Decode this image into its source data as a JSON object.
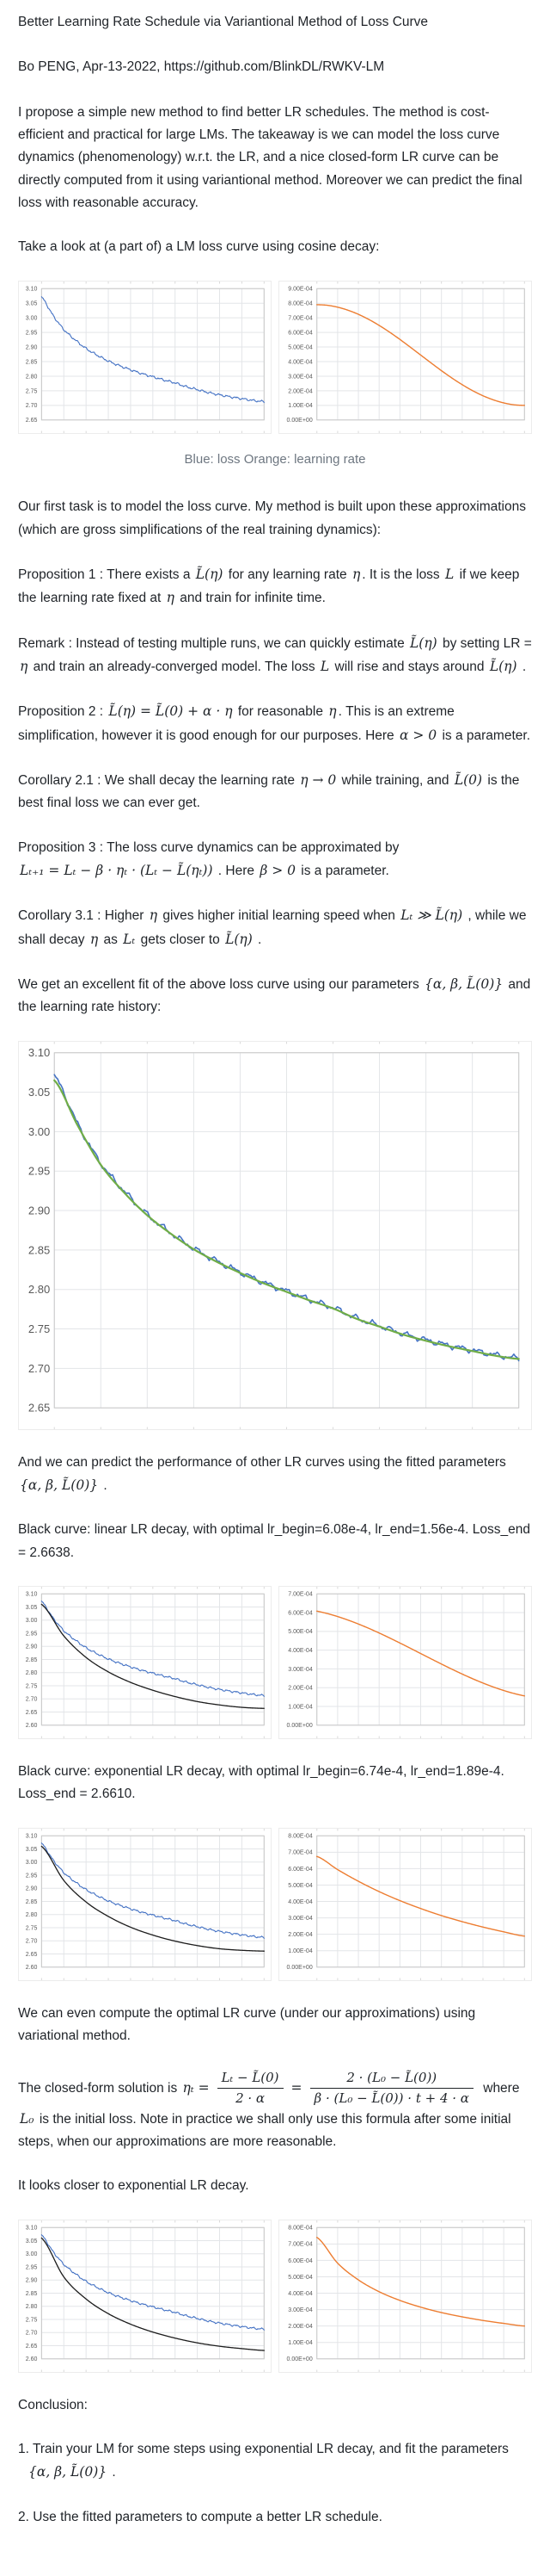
{
  "page": {
    "title": "Better Learning Rate Schedule via Variantional Method of Loss Curve",
    "byline": "Bo PENG, Apr-13-2022, https://github.com/BlinkDL/RWKV-LM"
  },
  "caption": "Blue: loss Orange: learning rate",
  "colors": {
    "loss_blue": "#4472c4",
    "lr_orange": "#ed7d31",
    "fit_green": "#70ad47",
    "predicted_black": "#1c1c1c",
    "caption_gray": "#6e7781"
  },
  "paras": {
    "intro": [
      {
        "t": "I propose a simple new method to find better LR schedules. The method is cost-efficient and practical for large LMs. The takeaway is we can model the loss curve dynamics (phenomenology) w.r.t. the LR, and a nice closed-form LR curve can be directly computed from it using variantional method. Moreover we can predict the final loss with reasonable accuracy."
      }
    ],
    "take_look": [
      {
        "t": "Take a look at (a part of) a LM loss curve using cosine decay:"
      }
    ],
    "first_task": [
      {
        "t": "Our first task is to model the loss curve. My method is built upon these approximations (which are gross simplifications of the real training dynamics):"
      }
    ],
    "prop1": [
      {
        "t": "Proposition 1 : There exists a "
      },
      {
        "m": "L̃(η)"
      },
      {
        "t": " for any learning rate "
      },
      {
        "m": "η"
      },
      {
        "t": ". It is the loss "
      },
      {
        "m": "L"
      },
      {
        "t": " if we keep the learning rate fixed at "
      },
      {
        "m": "η"
      },
      {
        "t": " and train for infinite time."
      }
    ],
    "remark": [
      {
        "t": "Remark : Instead of testing multiple runs, we can quickly estimate "
      },
      {
        "m": "L̃(η)"
      },
      {
        "t": " by setting LR = "
      },
      {
        "m": "η"
      },
      {
        "t": " and train an already-converged model. The loss "
      },
      {
        "m": "L"
      },
      {
        "t": " will rise and stays around "
      },
      {
        "m": "L̃(η)"
      },
      {
        "t": " ."
      }
    ],
    "prop2": [
      {
        "t": "Proposition 2 : "
      },
      {
        "m": "L̃(η) = L̃(0) + α · η"
      },
      {
        "t": " for reasonable "
      },
      {
        "m": "η"
      },
      {
        "t": ". This is an extreme simplification, however it is good enough for our purposes. Here "
      },
      {
        "m": "α > 0"
      },
      {
        "t": " is a parameter."
      }
    ],
    "cor21": [
      {
        "t": "Corollary 2.1 : We shall decay the learning rate "
      },
      {
        "m": "η → 0"
      },
      {
        "t": " while training, and "
      },
      {
        "m": "L̃(0)"
      },
      {
        "t": " is the best final loss we can ever get."
      }
    ],
    "prop3": [
      {
        "t": "Proposition 3 : The loss curve dynamics can be approximated by"
      },
      {
        "br": true
      },
      {
        "m": "Lₜ₊₁ = Lₜ − β · ηₜ · (Lₜ − L̃(ηₜ))"
      },
      {
        "t": " . Here "
      },
      {
        "m": "β > 0"
      },
      {
        "t": " is a parameter."
      }
    ],
    "cor31": [
      {
        "t": "Corollary 3.1 : Higher "
      },
      {
        "m": "η"
      },
      {
        "t": " gives higher initial learning speed when "
      },
      {
        "m": "Lₜ ≫ L̃(η)"
      },
      {
        "t": " , while we shall decay "
      },
      {
        "m": "η"
      },
      {
        "t": " as "
      },
      {
        "m": "Lₜ"
      },
      {
        "t": " gets closer to "
      },
      {
        "m": "L̃(η)"
      },
      {
        "t": " ."
      }
    ],
    "fit_intro": [
      {
        "t": "We get an excellent fit of the above loss curve using our parameters "
      },
      {
        "m": "{α, β, L̃(0)}"
      },
      {
        "t": " and the learning rate history:"
      }
    ],
    "predict": [
      {
        "t": "And we can predict the performance of other LR curves using the fitted parameters"
      },
      {
        "br": true
      },
      {
        "m": "{α, β, L̃(0)}"
      },
      {
        "t": " ."
      }
    ],
    "linear_line": [
      {
        "t": "Black curve: linear LR decay, with optimal lr_begin=6.08e-4, lr_end=1.56e-4. Loss_end = 2.6638."
      }
    ],
    "exp_line": [
      {
        "t": "Black curve: exponential LR decay, with optimal lr_begin=6.74e-4, lr_end=1.89e-4. Loss_end = 2.6610."
      }
    ],
    "variational": [
      {
        "t": "We can even compute the optimal LR curve (under our approximations) using variational method."
      }
    ],
    "closed_form": [
      {
        "t": "The closed-form solution is "
      },
      {
        "m": "ηₜ ="
      },
      {
        "f": {
          "num": "Lₜ − L̃(0)",
          "den": "2 · α"
        }
      },
      {
        "m": "="
      },
      {
        "f": {
          "num": "2 · (L₀ − L̃(0))",
          "den": "β · (L₀ − L̃(0)) · t + 4 · α"
        }
      },
      {
        "t": " where "
      },
      {
        "m": "L₀"
      },
      {
        "t": " is the initial loss. Note in practice we shall only use this formula after some initial steps, when our approximations are more reasonable."
      }
    ],
    "looks_closer": [
      {
        "t": "It looks closer to exponential LR decay."
      }
    ],
    "conclusion": [
      {
        "t": "Conclusion:"
      }
    ],
    "conc1": [
      {
        "t": "1. Train your LM for some steps using exponential LR decay, and fit the parameters"
      },
      {
        "br": true
      },
      {
        "sp": 10
      },
      {
        "m": "{α, β, L̃(0)}"
      },
      {
        "t": " ."
      }
    ],
    "conc2": [
      {
        "t": "2. Use the fitted parameters to compute a better LR schedule."
      }
    ]
  },
  "chart_data": [
    {
      "id": "cosine_loss",
      "type": "line",
      "title": "LM loss, cosine LR decay",
      "x_columns": 10,
      "y_ticks": [
        "3.10",
        "3.05",
        "3.00",
        "2.95",
        "2.90",
        "2.85",
        "2.80",
        "2.75",
        "2.70",
        "2.65"
      ],
      "y_min": 2.65,
      "y_max": 3.1,
      "grid": true,
      "legend": "none",
      "series": [
        {
          "name": "loss (blue)",
          "color": "#4472c4",
          "width": 1.1,
          "noise": 0.005,
          "values": [
            3.07,
            3.01,
            2.96,
            2.925,
            2.895,
            2.872,
            2.852,
            2.836,
            2.822,
            2.809,
            2.798,
            2.787,
            2.777,
            2.764,
            2.754,
            2.744,
            2.736,
            2.729,
            2.723,
            2.717,
            2.713
          ]
        }
      ]
    },
    {
      "id": "cosine_lr",
      "type": "line",
      "title": "learning rate, cosine decay",
      "x_columns": 10,
      "y_ticks": [
        "9.00E-04",
        "8.00E-04",
        "7.00E-04",
        "6.00E-04",
        "5.00E-04",
        "4.00E-04",
        "3.00E-04",
        "2.00E-04",
        "1.00E-04",
        "0.00E+00"
      ],
      "y_min": 0,
      "y_max": 0.0009,
      "grid": true,
      "legend": "none",
      "series": [
        {
          "name": "learning rate (orange)",
          "color": "#ed7d31",
          "width": 1.4,
          "values": [
            0.00079,
            0.000786,
            0.000773,
            0.000752,
            0.000724,
            0.000689,
            0.000648,
            0.000602,
            0.000552,
            0.000499,
            0.000445,
            0.000391,
            0.000338,
            0.000288,
            0.000242,
            0.000201,
            0.000166,
            0.000138,
            0.000117,
            0.000104,
            0.0001
          ]
        }
      ]
    },
    {
      "id": "fit",
      "type": "line",
      "title": "loss curve fit with parameters {α, β, L̃(0)}",
      "x_columns": 10,
      "y_ticks": [
        "3.10",
        "3.05",
        "3.00",
        "2.95",
        "2.90",
        "2.85",
        "2.80",
        "2.75",
        "2.70",
        "2.65"
      ],
      "y_min": 2.65,
      "y_max": 3.1,
      "grid": true,
      "legend": "none",
      "series": [
        {
          "name": "actual loss (blue)",
          "color": "#4472c4",
          "width": 1.6,
          "noise": 0.005,
          "values": [
            3.07,
            3.01,
            2.96,
            2.925,
            2.895,
            2.872,
            2.852,
            2.836,
            2.822,
            2.809,
            2.798,
            2.787,
            2.777,
            2.764,
            2.754,
            2.744,
            2.736,
            2.729,
            2.723,
            2.717,
            2.713
          ]
        },
        {
          "name": "model fit (green)",
          "color": "#70ad47",
          "width": 2.2,
          "values": [
            3.065,
            3.008,
            2.958,
            2.923,
            2.894,
            2.871,
            2.851,
            2.835,
            2.821,
            2.808,
            2.797,
            2.786,
            2.776,
            2.763,
            2.753,
            2.743,
            2.735,
            2.728,
            2.722,
            2.716,
            2.712
          ]
        }
      ]
    },
    {
      "id": "linear_loss",
      "type": "line",
      "title": "predicted loss, linear LR decay",
      "x_columns": 10,
      "y_ticks": [
        "3.10",
        "3.05",
        "3.00",
        "2.95",
        "2.90",
        "2.85",
        "2.80",
        "2.75",
        "2.70",
        "2.65",
        "2.60"
      ],
      "y_min": 2.6,
      "y_max": 3.1,
      "grid": true,
      "legend": "none",
      "series": [
        {
          "name": "actual loss (blue)",
          "color": "#4472c4",
          "width": 1.1,
          "noise": 0.005,
          "values": [
            3.07,
            3.01,
            2.96,
            2.925,
            2.895,
            2.872,
            2.852,
            2.836,
            2.822,
            2.809,
            2.798,
            2.787,
            2.777,
            2.764,
            2.754,
            2.744,
            2.736,
            2.729,
            2.723,
            2.717,
            2.713
          ]
        },
        {
          "name": "predicted loss linear decay (black), loss_end 2.6638",
          "color": "#1c1c1c",
          "width": 1.3,
          "values": [
            3.06,
            2.94,
            2.858,
            2.803,
            2.763,
            2.733,
            2.709,
            2.69,
            2.677,
            2.668,
            2.664
          ]
        }
      ]
    },
    {
      "id": "linear_lr",
      "type": "line",
      "title": "linear LR decay, lr_begin 6.08e-4 to lr_end 1.56e-4",
      "x_columns": 10,
      "y_ticks": [
        "7.00E-04",
        "6.00E-04",
        "5.00E-04",
        "4.00E-04",
        "3.00E-04",
        "2.00E-04",
        "1.00E-04",
        "0.00E+00"
      ],
      "y_min": 0,
      "y_max": 0.0007,
      "grid": true,
      "legend": "none",
      "series": [
        {
          "name": "learning rate (orange)",
          "color": "#ed7d31",
          "width": 1.4,
          "values": [
            0.000608,
            0.000156
          ]
        }
      ]
    },
    {
      "id": "exp_loss",
      "type": "line",
      "title": "predicted loss, exponential LR decay",
      "x_columns": 10,
      "y_ticks": [
        "3.10",
        "3.05",
        "3.00",
        "2.95",
        "2.90",
        "2.85",
        "2.80",
        "2.75",
        "2.70",
        "2.65",
        "2.60"
      ],
      "y_min": 2.6,
      "y_max": 3.1,
      "grid": true,
      "legend": "none",
      "series": [
        {
          "name": "actual loss (blue)",
          "color": "#4472c4",
          "width": 1.1,
          "noise": 0.005,
          "values": [
            3.07,
            3.01,
            2.96,
            2.925,
            2.895,
            2.872,
            2.852,
            2.836,
            2.822,
            2.809,
            2.798,
            2.787,
            2.777,
            2.764,
            2.754,
            2.744,
            2.736,
            2.729,
            2.723,
            2.717,
            2.713
          ]
        },
        {
          "name": "predicted loss exponential decay (black), loss_end 2.6610",
          "color": "#1c1c1c",
          "width": 1.3,
          "values": [
            3.06,
            2.93,
            2.848,
            2.793,
            2.752,
            2.722,
            2.699,
            2.682,
            2.67,
            2.664,
            2.661
          ]
        }
      ]
    },
    {
      "id": "exp_lr",
      "type": "line",
      "title": "exponential LR decay, lr_begin 6.74e-4 to lr_end 1.89e-4",
      "x_columns": 10,
      "y_ticks": [
        "8.00E-04",
        "7.00E-04",
        "6.00E-04",
        "5.00E-04",
        "4.00E-04",
        "3.00E-04",
        "2.00E-04",
        "1.00E-04",
        "0.00E+00"
      ],
      "y_min": 0,
      "y_max": 0.0008,
      "grid": true,
      "legend": "none",
      "series": [
        {
          "name": "learning rate (orange)",
          "color": "#ed7d31",
          "width": 1.4,
          "values": [
            0.000674,
            0.000594,
            0.000523,
            0.00046,
            0.000405,
            0.000357,
            0.000314,
            0.000277,
            0.000244,
            0.000215,
            0.000189
          ]
        }
      ]
    },
    {
      "id": "optimal_loss",
      "type": "line",
      "title": "predicted loss, optimal (variational) LR curve",
      "x_columns": 10,
      "y_ticks": [
        "3.10",
        "3.05",
        "3.00",
        "2.95",
        "2.90",
        "2.85",
        "2.80",
        "2.75",
        "2.70",
        "2.65",
        "2.60"
      ],
      "y_min": 2.6,
      "y_max": 3.1,
      "grid": true,
      "legend": "none",
      "series": [
        {
          "name": "actual loss (blue)",
          "color": "#4472c4",
          "width": 1.1,
          "noise": 0.005,
          "values": [
            3.07,
            3.01,
            2.96,
            2.925,
            2.895,
            2.872,
            2.852,
            2.836,
            2.822,
            2.809,
            2.798,
            2.787,
            2.777,
            2.764,
            2.754,
            2.744,
            2.736,
            2.729,
            2.723,
            2.717,
            2.713
          ]
        },
        {
          "name": "predicted loss optimal LR (black)",
          "color": "#1c1c1c",
          "width": 1.3,
          "values": [
            3.06,
            2.912,
            2.828,
            2.772,
            2.732,
            2.702,
            2.679,
            2.661,
            2.648,
            2.639,
            2.632
          ]
        }
      ]
    },
    {
      "id": "optimal_lr",
      "type": "line",
      "title": "optimal closed-form LR curve",
      "x_columns": 10,
      "y_ticks": [
        "8.00E-04",
        "7.00E-04",
        "6.00E-04",
        "5.00E-04",
        "4.00E-04",
        "3.00E-04",
        "2.00E-04",
        "1.00E-04",
        "0.00E+00"
      ],
      "y_min": 0,
      "y_max": 0.0008,
      "grid": true,
      "legend": "none",
      "series": [
        {
          "name": "learning rate (orange)",
          "color": "#ed7d31",
          "width": 1.4,
          "values": [
            0.00074,
            0.000583,
            0.000481,
            0.000409,
            0.000356,
            0.000315,
            0.000282,
            0.000256,
            0.000234,
            0.000216,
            0.0002
          ]
        }
      ]
    }
  ]
}
